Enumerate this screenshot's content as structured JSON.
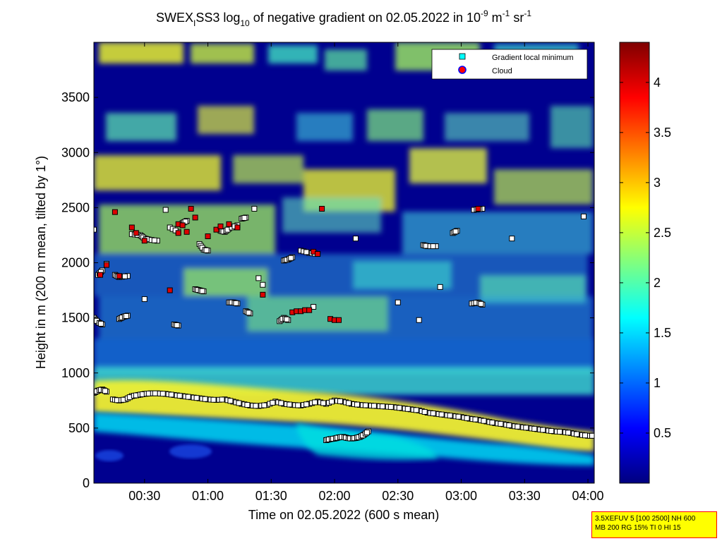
{
  "chart_data": {
    "type": "heatmap",
    "title_parts": {
      "a": "SWEX",
      "a_sub": "I",
      "b": "SS3 log",
      "b_sub": "10",
      "c": " of negative gradient on 02.05.2022 in 10",
      "c_sup": "-9",
      "d": " m",
      "d_sup": "-1",
      "e": " sr",
      "e_sup": "-1"
    },
    "xlabel": "Time on 02.05.2022 (600 s mean)",
    "ylabel": "Height in m (200 m mean, tilted by 1°)",
    "x_ticks": [
      "00:30",
      "01:00",
      "01:30",
      "02:00",
      "02:30",
      "03:00",
      "03:30",
      "04:00"
    ],
    "x_tick_minutes": [
      30,
      60,
      90,
      120,
      150,
      180,
      210,
      240
    ],
    "xlim_minutes": [
      6,
      243
    ],
    "y_ticks": [
      0,
      500,
      1000,
      1500,
      2000,
      2500,
      3000,
      3500
    ],
    "ylim": [
      0,
      4000
    ],
    "colorbar": {
      "ticks": [
        0.5,
        1,
        1.5,
        2,
        2.5,
        3,
        3.5,
        4
      ],
      "tick_labels": [
        "0.5",
        "1",
        "1.5",
        "2",
        "2.5",
        "3",
        "3.5",
        "4"
      ],
      "range": [
        0,
        4.4
      ],
      "colormap": "jet"
    },
    "legend": {
      "placement": "top-right",
      "entries": [
        {
          "label": "Gradient local minimum",
          "color": "#00ffff",
          "marker": "square"
        },
        {
          "label": "Cloud",
          "color": "#ff0000",
          "marker": "circle"
        }
      ]
    },
    "series": [
      {
        "name": "Gradient local minimum",
        "points": [
          [
            6,
            820
          ],
          [
            8,
            840
          ],
          [
            10,
            850
          ],
          [
            12,
            830
          ],
          [
            15,
            760
          ],
          [
            18,
            750
          ],
          [
            21,
            760
          ],
          [
            24,
            790
          ],
          [
            27,
            800
          ],
          [
            30,
            810
          ],
          [
            33,
            815
          ],
          [
            36,
            815
          ],
          [
            40,
            810
          ],
          [
            44,
            800
          ],
          [
            48,
            790
          ],
          [
            52,
            780
          ],
          [
            56,
            770
          ],
          [
            60,
            760
          ],
          [
            64,
            755
          ],
          [
            68,
            760
          ],
          [
            72,
            740
          ],
          [
            76,
            720
          ],
          [
            80,
            705
          ],
          [
            84,
            700
          ],
          [
            88,
            710
          ],
          [
            92,
            740
          ],
          [
            96,
            720
          ],
          [
            100,
            710
          ],
          [
            104,
            705
          ],
          [
            108,
            720
          ],
          [
            112,
            740
          ],
          [
            116,
            720
          ],
          [
            120,
            750
          ],
          [
            124,
            740
          ],
          [
            128,
            720
          ],
          [
            132,
            710
          ],
          [
            136,
            705
          ],
          [
            140,
            700
          ],
          [
            144,
            695
          ],
          [
            148,
            690
          ],
          [
            152,
            680
          ],
          [
            156,
            670
          ],
          [
            160,
            660
          ],
          [
            164,
            640
          ],
          [
            168,
            630
          ],
          [
            172,
            620
          ],
          [
            176,
            610
          ],
          [
            180,
            600
          ],
          [
            184,
            585
          ],
          [
            188,
            575
          ],
          [
            192,
            560
          ],
          [
            196,
            545
          ],
          [
            200,
            535
          ],
          [
            204,
            520
          ],
          [
            208,
            510
          ],
          [
            212,
            500
          ],
          [
            216,
            490
          ],
          [
            220,
            480
          ],
          [
            224,
            470
          ],
          [
            228,
            465
          ],
          [
            232,
            455
          ],
          [
            236,
            440
          ],
          [
            240,
            430
          ],
          [
            243,
            430
          ],
          [
            116,
            390
          ],
          [
            118,
            400
          ],
          [
            120,
            405
          ],
          [
            122,
            415
          ],
          [
            124,
            420
          ],
          [
            126,
            410
          ],
          [
            128,
            405
          ],
          [
            130,
            410
          ],
          [
            132,
            420
          ],
          [
            134,
            440
          ],
          [
            136,
            470
          ],
          [
            6,
            1500
          ],
          [
            8,
            1460
          ],
          [
            10,
            1440
          ],
          [
            18,
            1490
          ],
          [
            20,
            1510
          ],
          [
            22,
            1520
          ],
          [
            30,
            1670
          ],
          [
            44,
            1440
          ],
          [
            46,
            1430
          ],
          [
            54,
            1760
          ],
          [
            56,
            1750
          ],
          [
            58,
            1740
          ],
          [
            70,
            1640
          ],
          [
            72,
            1640
          ],
          [
            74,
            1630
          ],
          [
            78,
            1560
          ],
          [
            80,
            1540
          ],
          [
            84,
            1860
          ],
          [
            86,
            1800
          ],
          [
            94,
            1470
          ],
          [
            96,
            1500
          ],
          [
            98,
            1480
          ],
          [
            110,
            1600
          ],
          [
            150,
            1640
          ],
          [
            160,
            1480
          ],
          [
            170,
            1780
          ],
          [
            185,
            1630
          ],
          [
            188,
            1640
          ],
          [
            190,
            1620
          ],
          [
            8,
            1890
          ],
          [
            10,
            1930
          ],
          [
            12,
            1990
          ],
          [
            16,
            1890
          ],
          [
            18,
            1870
          ],
          [
            22,
            1880
          ],
          [
            24,
            2260
          ],
          [
            28,
            2250
          ],
          [
            30,
            2220
          ],
          [
            32,
            2210
          ],
          [
            36,
            2200
          ],
          [
            42,
            2320
          ],
          [
            46,
            2280
          ],
          [
            48,
            2360
          ],
          [
            50,
            2380
          ],
          [
            56,
            2170
          ],
          [
            58,
            2120
          ],
          [
            60,
            2110
          ],
          [
            66,
            2290
          ],
          [
            68,
            2280
          ],
          [
            70,
            2310
          ],
          [
            74,
            2340
          ],
          [
            76,
            2400
          ],
          [
            78,
            2410
          ],
          [
            82,
            2490
          ],
          [
            96,
            2020
          ],
          [
            98,
            2030
          ],
          [
            100,
            2050
          ],
          [
            104,
            2110
          ],
          [
            108,
            2090
          ],
          [
            112,
            2080
          ],
          [
            130,
            2220
          ],
          [
            162,
            2160
          ],
          [
            164,
            2150
          ],
          [
            168,
            2150
          ],
          [
            176,
            2270
          ],
          [
            178,
            2290
          ],
          [
            186,
            2480
          ],
          [
            190,
            2490
          ],
          [
            204,
            2220
          ],
          [
            238,
            2420
          ],
          [
            6,
            2300
          ],
          [
            40,
            2480
          ]
        ]
      },
      {
        "name": "Cloud",
        "points": [
          [
            9,
            1890
          ],
          [
            12,
            1980
          ],
          [
            16,
            2460
          ],
          [
            18,
            1880
          ],
          [
            24,
            2320
          ],
          [
            26,
            2270
          ],
          [
            30,
            2200
          ],
          [
            42,
            1750
          ],
          [
            46,
            2350
          ],
          [
            48,
            2340
          ],
          [
            50,
            2280
          ],
          [
            52,
            2490
          ],
          [
            54,
            2410
          ],
          [
            60,
            2240
          ],
          [
            64,
            2300
          ],
          [
            66,
            2330
          ],
          [
            70,
            2350
          ],
          [
            74,
            2320
          ],
          [
            86,
            1710
          ],
          [
            100,
            1550
          ],
          [
            102,
            1560
          ],
          [
            104,
            1560
          ],
          [
            106,
            1570
          ],
          [
            108,
            1570
          ],
          [
            110,
            2100
          ],
          [
            112,
            2080
          ],
          [
            114,
            2490
          ],
          [
            118,
            1490
          ],
          [
            120,
            1480
          ],
          [
            122,
            1480
          ],
          [
            188,
            2490
          ],
          [
            46,
            2270
          ]
        ]
      }
    ]
  },
  "info_box": {
    "line1": "3.5XEFUV 5 [100 2500] NH 600",
    "line2": "MB 200 RG 15% TI 0 HI 15"
  }
}
